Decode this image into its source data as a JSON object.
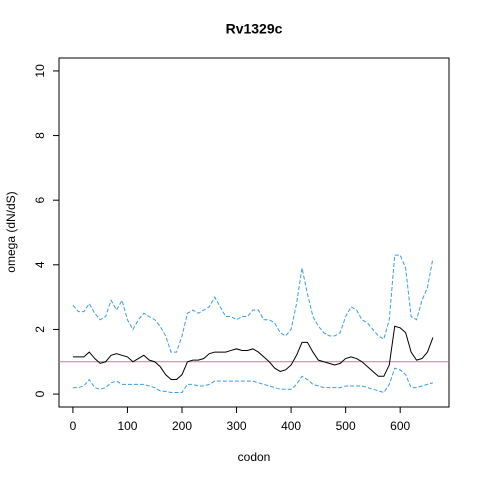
{
  "chart_data": {
    "type": "line",
    "title": "Rv1329c",
    "x_label": "codon",
    "y_label": "omega (dN/dS)",
    "x": [
      0,
      10,
      20,
      30,
      40,
      50,
      60,
      70,
      80,
      90,
      100,
      110,
      120,
      130,
      140,
      150,
      160,
      170,
      180,
      190,
      200,
      210,
      220,
      230,
      240,
      250,
      260,
      270,
      280,
      290,
      300,
      310,
      320,
      330,
      340,
      350,
      360,
      370,
      380,
      390,
      400,
      410,
      420,
      430,
      440,
      450,
      460,
      470,
      480,
      490,
      500,
      510,
      520,
      530,
      540,
      550,
      560,
      570,
      580,
      590,
      600,
      610,
      620,
      630,
      640,
      650,
      660
    ],
    "series": [
      {
        "color": "#000000",
        "dashed": false,
        "values": [
          1.15,
          1.15,
          1.15,
          1.3,
          1.1,
          0.95,
          1.0,
          1.2,
          1.25,
          1.2,
          1.15,
          1.0,
          1.1,
          1.2,
          1.05,
          1.0,
          0.85,
          0.6,
          0.45,
          0.45,
          0.6,
          1.0,
          1.05,
          1.05,
          1.1,
          1.25,
          1.3,
          1.3,
          1.3,
          1.35,
          1.4,
          1.35,
          1.35,
          1.4,
          1.3,
          1.15,
          1.0,
          0.8,
          0.7,
          0.75,
          0.9,
          1.2,
          1.6,
          1.6,
          1.3,
          1.05,
          1.0,
          0.95,
          0.9,
          0.95,
          1.1,
          1.15,
          1.1,
          1.0,
          0.85,
          0.7,
          0.55,
          0.55,
          0.9,
          2.1,
          2.05,
          1.9,
          1.3,
          1.05,
          1.1,
          1.3,
          1.75
        ]
      },
      {
        "color": "#3a9ee6",
        "dashed": true,
        "values": [
          2.75,
          2.55,
          2.55,
          2.8,
          2.5,
          2.3,
          2.4,
          2.9,
          2.6,
          2.9,
          2.3,
          2.0,
          2.3,
          2.5,
          2.4,
          2.3,
          2.1,
          1.8,
          1.3,
          1.3,
          1.8,
          2.5,
          2.6,
          2.5,
          2.6,
          2.7,
          3.0,
          2.7,
          2.4,
          2.4,
          2.3,
          2.4,
          2.4,
          2.6,
          2.6,
          2.3,
          2.3,
          2.2,
          1.9,
          1.8,
          2.0,
          2.8,
          3.9,
          3.1,
          2.4,
          2.1,
          1.9,
          1.8,
          1.8,
          1.9,
          2.4,
          2.7,
          2.6,
          2.3,
          2.2,
          2.0,
          1.8,
          1.7,
          2.3,
          4.3,
          4.3,
          3.9,
          2.4,
          2.3,
          2.9,
          3.3,
          4.2
        ]
      },
      {
        "color": "#3a9ee6",
        "dashed": true,
        "values": [
          0.2,
          0.2,
          0.25,
          0.45,
          0.2,
          0.15,
          0.2,
          0.35,
          0.4,
          0.3,
          0.3,
          0.3,
          0.3,
          0.3,
          0.25,
          0.2,
          0.1,
          0.08,
          0.05,
          0.05,
          0.05,
          0.3,
          0.3,
          0.25,
          0.25,
          0.3,
          0.4,
          0.4,
          0.4,
          0.4,
          0.4,
          0.4,
          0.4,
          0.4,
          0.35,
          0.3,
          0.25,
          0.2,
          0.15,
          0.15,
          0.15,
          0.3,
          0.55,
          0.45,
          0.3,
          0.25,
          0.2,
          0.2,
          0.2,
          0.2,
          0.25,
          0.25,
          0.25,
          0.25,
          0.2,
          0.15,
          0.1,
          0.05,
          0.3,
          0.8,
          0.75,
          0.6,
          0.2,
          0.2,
          0.25,
          0.3,
          0.35
        ]
      }
    ],
    "hline": {
      "value": 1,
      "color": "#d9709a"
    },
    "xlim": [
      -25.5,
      689.5
    ],
    "ylim": [
      -0.4,
      10.4
    ],
    "xticks": [
      0,
      100,
      200,
      300,
      400,
      500,
      600
    ],
    "yticks": [
      0,
      2,
      4,
      6,
      8,
      10
    ],
    "grid": false
  }
}
